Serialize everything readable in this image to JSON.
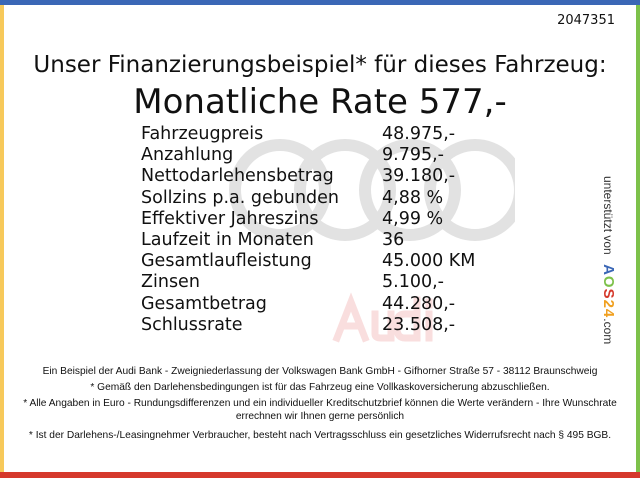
{
  "colors": {
    "top": "#3b67b6",
    "left": "#f7c95a",
    "right": "#7dc14a",
    "bottom": "#d5392c"
  },
  "id": "2047351",
  "heading": "Unser Finanzierungsbeispiel* für dieses Fahrzeug:",
  "rate": "Monatliche Rate 577,-",
  "watermark": "Audi",
  "rows": [
    {
      "label": "Fahrzeugpreis",
      "value": "48.975,-"
    },
    {
      "label": "Anzahlung",
      "value": "9.795,-"
    },
    {
      "label": "Nettodarlehensbetrag",
      "value": "39.180,-"
    },
    {
      "label": "Sollzins p.a. gebunden",
      "value": "4,88 %"
    },
    {
      "label": "Effektiver Jahreszins",
      "value": "4,99 %"
    },
    {
      "label": "Laufzeit in Monaten",
      "value": "36"
    },
    {
      "label": "Gesamtlaufleistung",
      "value": "45.000 KM"
    },
    {
      "label": "Zinsen",
      "value": "5.100,-"
    },
    {
      "label": "Gesamtbetrag",
      "value": "44.280,-"
    },
    {
      "label": "Schlussrate",
      "value": "23.508,-"
    }
  ],
  "side": {
    "text": "unterstützt von",
    "logo": "AOS24",
    ".com": ".com"
  },
  "footer": [
    "Ein Beispiel der Audi Bank - Zweigniederlassung der Volkswagen Bank GmbH - Gifhorner Straße 57 - 38112 Braunschweig",
    "* Gemäß den Darlehensbedingungen ist für das Fahrzeug eine Vollkaskoversicherung abzuschließen.",
    "* Alle Angaben in Euro - Rundungsdifferenzen und ein individueller Kreditschutzbrief können die Werte verändern - Ihre Wunschrate errechnen wir Ihnen gerne persönlich",
    "* Ist der Darlehens-/Leasingnehmer Verbraucher, besteht nach Vertragsschluss ein gesetzliches Widerrufsrecht nach § 495 BGB."
  ]
}
